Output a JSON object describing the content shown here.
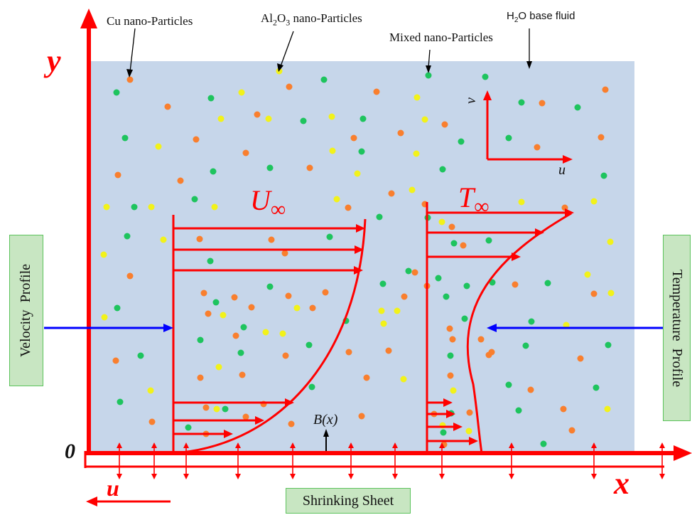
{
  "labels": {
    "cu_particles": "Cu nano-Particles",
    "al2o3_main": "Al",
    "al2o3_sub1": "2",
    "al2o3_mid": "O",
    "al2o3_sub2": "3",
    "al2o3_rest": " nano-Particles",
    "mixed_particles": "Mixed nano-Particles",
    "h2o_main": "H",
    "h2o_sub": "2",
    "h2o_rest": "O base fluid",
    "velocity_profile": "Velocity  Profile",
    "temperature_profile": "Temperature  Profile",
    "shrinking_sheet": "Shrinking Sheet",
    "u_infinity": "U",
    "t_infinity": "T",
    "infinity_symbol": "∞",
    "magnetic_field": "B(x)",
    "axis_x": "x",
    "axis_y": "y",
    "origin": "0",
    "sheet_u": "u",
    "inset_u": "u",
    "inset_v": "v"
  },
  "colors": {
    "fluid": "#c6d6ea",
    "red": "#ff0000",
    "blue": "#0000ff",
    "cu": "#f97f2e",
    "al2o3": "#f2f21a",
    "mixed": "#1ec45e",
    "green_box_fill": "#c8e6c2",
    "green_box_border": "#5cc35c"
  }
}
